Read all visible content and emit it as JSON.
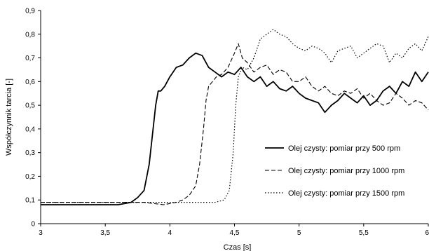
{
  "chart_data": {
    "type": "line",
    "xlabel": "Czas [s]",
    "ylabel": "Współczynnik tarcia [-]",
    "xlim": [
      3,
      6
    ],
    "ylim": [
      0,
      0.9
    ],
    "x_ticks": [
      "3",
      "3,5",
      "4",
      "4,5",
      "5",
      "5,5",
      "6"
    ],
    "y_ticks": [
      "0",
      "0,1",
      "0,2",
      "0,3",
      "0,4",
      "0,5",
      "0,6",
      "0,7",
      "0,8",
      "0,9"
    ],
    "grid": false,
    "legend_position": "right",
    "series": [
      {
        "name": "Olej czysty: pomiar przy 500 rpm",
        "style": "solid",
        "color": "#000000",
        "x": [
          3.0,
          3.1,
          3.2,
          3.3,
          3.4,
          3.5,
          3.6,
          3.7,
          3.75,
          3.8,
          3.84,
          3.87,
          3.89,
          3.91,
          3.93,
          3.96,
          4.0,
          4.05,
          4.1,
          4.15,
          4.2,
          4.25,
          4.3,
          4.35,
          4.4,
          4.45,
          4.5,
          4.55,
          4.6,
          4.65,
          4.7,
          4.75,
          4.8,
          4.85,
          4.9,
          4.95,
          5.0,
          5.05,
          5.1,
          5.15,
          5.2,
          5.25,
          5.3,
          5.35,
          5.4,
          5.45,
          5.5,
          5.55,
          5.6,
          5.65,
          5.7,
          5.75,
          5.8,
          5.85,
          5.9,
          5.95,
          6.0
        ],
        "values": [
          0.08,
          0.08,
          0.08,
          0.08,
          0.08,
          0.08,
          0.08,
          0.09,
          0.11,
          0.14,
          0.25,
          0.4,
          0.5,
          0.56,
          0.56,
          0.58,
          0.62,
          0.66,
          0.67,
          0.7,
          0.72,
          0.71,
          0.66,
          0.64,
          0.62,
          0.64,
          0.63,
          0.66,
          0.62,
          0.6,
          0.62,
          0.58,
          0.6,
          0.57,
          0.56,
          0.58,
          0.55,
          0.53,
          0.52,
          0.51,
          0.47,
          0.5,
          0.52,
          0.55,
          0.53,
          0.51,
          0.54,
          0.5,
          0.52,
          0.56,
          0.58,
          0.55,
          0.6,
          0.58,
          0.64,
          0.6,
          0.64
        ]
      },
      {
        "name": "Olej czysty: pomiar przy 1000 rpm",
        "style": "dashed",
        "color": "#000000",
        "x": [
          3.0,
          3.2,
          3.4,
          3.6,
          3.8,
          3.95,
          4.05,
          4.1,
          4.15,
          4.2,
          4.23,
          4.26,
          4.28,
          4.3,
          4.33,
          4.36,
          4.4,
          4.45,
          4.5,
          4.53,
          4.56,
          4.6,
          4.65,
          4.7,
          4.75,
          4.8,
          4.85,
          4.9,
          4.95,
          5.0,
          5.05,
          5.1,
          5.15,
          5.2,
          5.25,
          5.3,
          5.35,
          5.4,
          5.45,
          5.5,
          5.55,
          5.6,
          5.65,
          5.7,
          5.75,
          5.8,
          5.85,
          5.9,
          5.95,
          6.0
        ],
        "values": [
          0.09,
          0.09,
          0.09,
          0.09,
          0.09,
          0.08,
          0.09,
          0.1,
          0.12,
          0.16,
          0.25,
          0.4,
          0.52,
          0.58,
          0.6,
          0.62,
          0.63,
          0.66,
          0.72,
          0.76,
          0.7,
          0.68,
          0.64,
          0.66,
          0.67,
          0.63,
          0.65,
          0.64,
          0.6,
          0.6,
          0.62,
          0.58,
          0.56,
          0.58,
          0.55,
          0.54,
          0.56,
          0.55,
          0.57,
          0.53,
          0.55,
          0.52,
          0.5,
          0.51,
          0.55,
          0.53,
          0.5,
          0.52,
          0.51,
          0.48
        ]
      },
      {
        "name": "Olej czysty: pomiar przy 1500 rpm",
        "style": "dotted",
        "color": "#000000",
        "x": [
          3.0,
          3.3,
          3.6,
          3.9,
          4.2,
          4.35,
          4.42,
          4.46,
          4.49,
          4.51,
          4.53,
          4.56,
          4.6,
          4.65,
          4.7,
          4.75,
          4.8,
          4.85,
          4.9,
          4.95,
          5.0,
          5.05,
          5.1,
          5.15,
          5.2,
          5.25,
          5.3,
          5.35,
          5.4,
          5.45,
          5.5,
          5.55,
          5.6,
          5.65,
          5.7,
          5.75,
          5.8,
          5.85,
          5.9,
          5.95,
          6.0
        ],
        "values": [
          0.09,
          0.09,
          0.09,
          0.09,
          0.09,
          0.09,
          0.1,
          0.14,
          0.3,
          0.5,
          0.62,
          0.66,
          0.65,
          0.7,
          0.78,
          0.8,
          0.82,
          0.8,
          0.79,
          0.76,
          0.74,
          0.73,
          0.75,
          0.74,
          0.72,
          0.68,
          0.73,
          0.74,
          0.75,
          0.7,
          0.72,
          0.74,
          0.76,
          0.75,
          0.68,
          0.72,
          0.7,
          0.74,
          0.76,
          0.73,
          0.79
        ]
      }
    ]
  }
}
